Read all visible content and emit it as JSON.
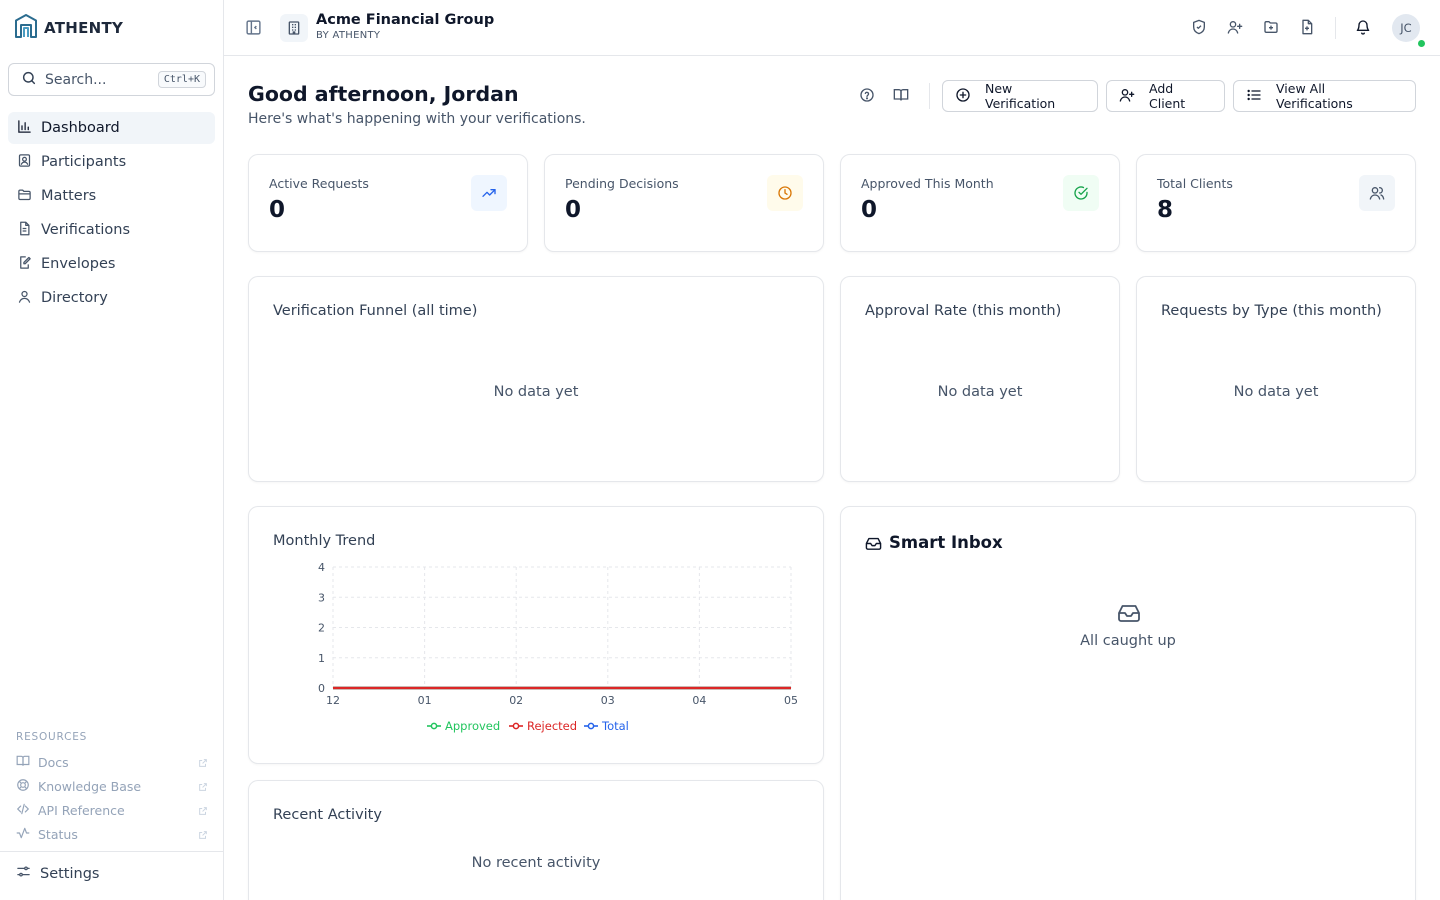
{
  "brand": {
    "name": "ATHENTY"
  },
  "search": {
    "placeholder": "Search...",
    "shortcut": "Ctrl+K"
  },
  "nav": [
    {
      "label": "Dashboard",
      "icon": "bar-chart-icon",
      "active": true
    },
    {
      "label": "Participants",
      "icon": "contact-icon"
    },
    {
      "label": "Matters",
      "icon": "folder-icon"
    },
    {
      "label": "Verifications",
      "icon": "document-icon"
    },
    {
      "label": "Envelopes",
      "icon": "signature-icon"
    },
    {
      "label": "Directory",
      "icon": "user-icon"
    }
  ],
  "resources": {
    "title": "RESOURCES",
    "items": [
      {
        "label": "Docs",
        "icon": "book-icon"
      },
      {
        "label": "Knowledge Base",
        "icon": "lifebuoy-icon"
      },
      {
        "label": "API Reference",
        "icon": "code-icon"
      },
      {
        "label": "Status",
        "icon": "activity-icon"
      }
    ]
  },
  "settings": {
    "label": "Settings"
  },
  "topbar": {
    "org_name": "Acme Financial Group",
    "org_sub": "BY ATHENTY",
    "avatar_initials": "JC"
  },
  "header": {
    "greeting": "Good afternoon, Jordan",
    "subtitle": "Here's what's happening with your verifications.",
    "buttons": {
      "new_verification": "New Verification",
      "add_client": "Add Client",
      "view_all": "View All Verifications"
    }
  },
  "stats": [
    {
      "label": "Active Requests",
      "value": "0",
      "icon": "trending-up-icon",
      "tint": "#eff6ff",
      "color": "#2563eb"
    },
    {
      "label": "Pending Decisions",
      "value": "0",
      "icon": "clock-icon",
      "tint": "#fffbeb",
      "color": "#d97706"
    },
    {
      "label": "Approved This Month",
      "value": "0",
      "icon": "check-circle-icon",
      "tint": "#f0fdf4",
      "color": "#16a34a"
    },
    {
      "label": "Total Clients",
      "value": "8",
      "icon": "users-icon",
      "tint": "#f1f5f9",
      "color": "#475569"
    }
  ],
  "panels": {
    "funnel": {
      "title": "Verification Funnel (all time)",
      "empty": "No data yet"
    },
    "approval": {
      "title": "Approval Rate (this month)",
      "empty": "No data yet"
    },
    "by_type": {
      "title": "Requests by Type (this month)",
      "empty": "No data yet"
    },
    "trend": {
      "title": "Monthly Trend"
    },
    "inbox": {
      "title": "Smart Inbox",
      "empty": "All caught up"
    },
    "activity": {
      "title": "Recent Activity",
      "empty": "No recent activity"
    }
  },
  "chart_data": {
    "type": "line",
    "x": [
      "12",
      "01",
      "02",
      "03",
      "04",
      "05"
    ],
    "series": [
      {
        "name": "Approved",
        "values": [
          0,
          0,
          0,
          0,
          0,
          0
        ],
        "color": "#22c55e"
      },
      {
        "name": "Rejected",
        "values": [
          0,
          0,
          0,
          0,
          0,
          0
        ],
        "color": "#dc2626"
      },
      {
        "name": "Total",
        "values": [
          0,
          0,
          0,
          0,
          0,
          0
        ],
        "color": "#2563eb"
      }
    ],
    "yticks": [
      0,
      1,
      2,
      3,
      4
    ],
    "ylim": [
      0,
      4
    ],
    "grid": true,
    "legend": "bottom"
  }
}
